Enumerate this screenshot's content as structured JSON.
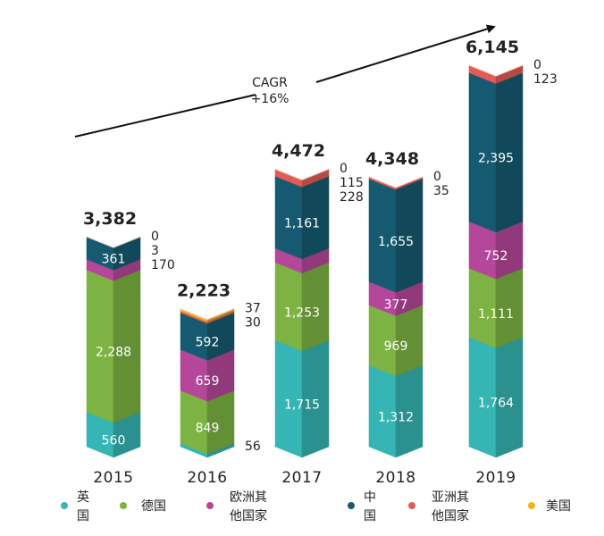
{
  "chart_data": {
    "type": "bar",
    "stacked": true,
    "categories": [
      "2015",
      "2016",
      "2017",
      "2018",
      "2019"
    ],
    "series": [
      {
        "name": "英国",
        "color": "#35B5B3",
        "values": [
          560,
          56,
          1715,
          1312,
          1764
        ]
      },
      {
        "name": "德国",
        "color": "#7CB342",
        "values": [
          2288,
          849,
          1253,
          969,
          1111
        ]
      },
      {
        "name": "欧洲其他国家",
        "color": "#B5479A",
        "values": [
          170,
          659,
          228,
          377,
          752
        ]
      },
      {
        "name": "中国",
        "color": "#155A70",
        "values": [
          361,
          592,
          1161,
          1655,
          2395
        ]
      },
      {
        "name": "亚洲其他国家",
        "color": "#E25B55",
        "values": [
          3,
          30,
          115,
          35,
          123
        ]
      },
      {
        "name": "美国",
        "color": "#EFB41C",
        "values": [
          0,
          37,
          0,
          0,
          0
        ]
      }
    ],
    "value_labels": [
      [
        "560",
        "56",
        "1,715",
        "1,312",
        "1,764"
      ],
      [
        "2,288",
        "849",
        "1,253",
        "969",
        "1,111"
      ],
      [
        "170",
        "659",
        "228",
        "377",
        "752"
      ],
      [
        "361",
        "592",
        "1,161",
        "1,655",
        "2,395"
      ],
      [
        "3",
        "30",
        "115",
        "35",
        "123"
      ],
      [
        "0",
        "37",
        "0",
        "0",
        "0"
      ]
    ],
    "totals": [
      3382,
      2223,
      4472,
      4348,
      6145
    ],
    "total_labels": [
      "3,382",
      "2,223",
      "4,472",
      "4,348",
      "6,145"
    ],
    "annotation": {
      "line1": "CAGR",
      "line2": "+16%"
    },
    "legend_position": "bottom"
  },
  "legend": [
    {
      "line1": "英",
      "line2": "国"
    },
    {
      "line1": "德国",
      "line2": ""
    },
    {
      "line1": "欧洲其",
      "line2": "他国家"
    },
    {
      "line1": "中",
      "line2": "国"
    },
    {
      "line1": "亚洲其",
      "line2": "他国家"
    },
    {
      "line1": "美国",
      "line2": ""
    }
  ]
}
